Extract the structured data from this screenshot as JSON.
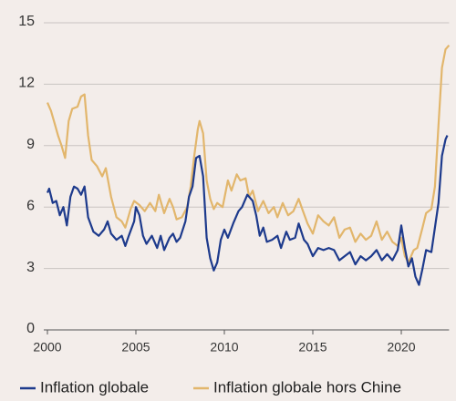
{
  "chart_data": {
    "type": "line",
    "xlim": [
      2000,
      2022.7
    ],
    "xticks": [
      2000,
      2005,
      2010,
      2015,
      2020
    ],
    "ylim": [
      0,
      15
    ],
    "yticks": [
      0,
      3,
      6,
      9,
      12,
      15
    ],
    "grid": true,
    "legend": "bottom",
    "series": [
      {
        "name": "Inflation globale",
        "color": "#1d3a8c",
        "x": [
          2000,
          2000.1,
          2000.3,
          2000.5,
          2000.7,
          2000.9,
          2001.1,
          2001.3,
          2001.5,
          2001.7,
          2001.9,
          2002.1,
          2002.3,
          2002.6,
          2002.9,
          2003.2,
          2003.4,
          2003.6,
          2003.9,
          2004.2,
          2004.4,
          2004.6,
          2004.9,
          2005.0,
          2005.2,
          2005.4,
          2005.6,
          2005.9,
          2006.2,
          2006.4,
          2006.6,
          2006.9,
          2007.1,
          2007.3,
          2007.5,
          2007.8,
          2008.0,
          2008.2,
          2008.4,
          2008.6,
          2008.8,
          2009.0,
          2009.2,
          2009.4,
          2009.6,
          2009.8,
          2010.0,
          2010.2,
          2010.5,
          2010.8,
          2011.0,
          2011.3,
          2011.6,
          2011.8,
          2012.0,
          2012.2,
          2012.4,
          2012.7,
          2013.0,
          2013.2,
          2013.5,
          2013.7,
          2014.0,
          2014.2,
          2014.5,
          2014.7,
          2015.0,
          2015.3,
          2015.6,
          2015.9,
          2016.2,
          2016.5,
          2016.8,
          2017.1,
          2017.4,
          2017.7,
          2018.0,
          2018.3,
          2018.6,
          2018.9,
          2019.2,
          2019.5,
          2019.8,
          2020.0,
          2020.2,
          2020.4,
          2020.6,
          2020.8,
          2021.0,
          2021.2,
          2021.4,
          2021.7,
          2021.9,
          2022.1,
          2022.3,
          2022.5,
          2022.6
        ],
        "values": [
          6.7,
          6.9,
          6.2,
          6.3,
          5.6,
          6.0,
          5.1,
          6.5,
          7.0,
          6.9,
          6.6,
          7.0,
          5.5,
          4.8,
          4.6,
          4.9,
          5.3,
          4.7,
          4.4,
          4.6,
          4.1,
          4.6,
          5.3,
          6.0,
          5.6,
          4.6,
          4.2,
          4.6,
          4.0,
          4.6,
          3.9,
          4.5,
          4.7,
          4.3,
          4.5,
          5.3,
          6.5,
          7.0,
          8.4,
          8.5,
          7.5,
          4.5,
          3.5,
          2.9,
          3.3,
          4.4,
          4.9,
          4.5,
          5.2,
          5.8,
          6.0,
          6.6,
          6.3,
          5.6,
          4.6,
          5.0,
          4.3,
          4.4,
          4.6,
          4.0,
          4.8,
          4.4,
          4.5,
          5.2,
          4.4,
          4.2,
          3.6,
          4.0,
          3.9,
          4.0,
          3.9,
          3.4,
          3.6,
          3.8,
          3.2,
          3.6,
          3.4,
          3.6,
          3.9,
          3.4,
          3.7,
          3.4,
          3.9,
          5.1,
          4.0,
          3.1,
          3.5,
          2.6,
          2.2,
          3.0,
          3.9,
          3.8,
          5.0,
          6.2,
          8.5,
          9.3,
          9.5
        ]
      },
      {
        "name": "Inflation globale hors Chine",
        "color": "#e2b66c",
        "x": [
          2000,
          2000.2,
          2000.4,
          2000.6,
          2000.8,
          2001.0,
          2001.2,
          2001.4,
          2001.7,
          2001.9,
          2002.1,
          2002.3,
          2002.5,
          2002.8,
          2003.1,
          2003.3,
          2003.6,
          2003.9,
          2004.2,
          2004.4,
          2004.7,
          2004.9,
          2005.2,
          2005.5,
          2005.8,
          2006.1,
          2006.3,
          2006.6,
          2006.9,
          2007.1,
          2007.3,
          2007.6,
          2007.9,
          2008.1,
          2008.3,
          2008.5,
          2008.6,
          2008.8,
          2009.0,
          2009.2,
          2009.4,
          2009.6,
          2009.9,
          2010.2,
          2010.4,
          2010.7,
          2010.9,
          2011.2,
          2011.4,
          2011.6,
          2011.9,
          2012.2,
          2012.5,
          2012.8,
          2013.0,
          2013.3,
          2013.6,
          2013.9,
          2014.2,
          2014.4,
          2014.7,
          2015.0,
          2015.3,
          2015.6,
          2015.9,
          2016.2,
          2016.5,
          2016.8,
          2017.1,
          2017.4,
          2017.7,
          2018.0,
          2018.3,
          2018.6,
          2018.9,
          2019.2,
          2019.5,
          2019.8,
          2020.0,
          2020.2,
          2020.4,
          2020.7,
          2020.9,
          2021.2,
          2021.4,
          2021.7,
          2021.9,
          2022.1,
          2022.3,
          2022.5,
          2022.7
        ],
        "values": [
          11.1,
          10.7,
          10.1,
          9.5,
          9.0,
          8.4,
          10.2,
          10.8,
          10.9,
          11.4,
          11.5,
          9.5,
          8.3,
          8.0,
          7.5,
          7.9,
          6.5,
          5.5,
          5.3,
          5.0,
          5.9,
          6.3,
          6.1,
          5.8,
          6.2,
          5.8,
          6.6,
          5.7,
          6.4,
          6.0,
          5.4,
          5.5,
          6.0,
          7.0,
          8.5,
          9.8,
          10.2,
          9.6,
          7.3,
          6.4,
          5.9,
          6.2,
          6.0,
          7.3,
          6.8,
          7.6,
          7.3,
          7.4,
          6.5,
          6.8,
          5.8,
          6.3,
          5.7,
          6.0,
          5.5,
          6.2,
          5.6,
          5.8,
          6.4,
          5.9,
          5.2,
          4.7,
          5.6,
          5.3,
          5.1,
          5.5,
          4.5,
          4.9,
          5.0,
          4.3,
          4.7,
          4.4,
          4.6,
          5.3,
          4.4,
          4.8,
          4.3,
          4.1,
          4.5,
          3.6,
          3.3,
          3.9,
          4.0,
          5.0,
          5.7,
          5.9,
          7.0,
          10.0,
          12.8,
          13.7,
          13.9
        ]
      }
    ]
  }
}
